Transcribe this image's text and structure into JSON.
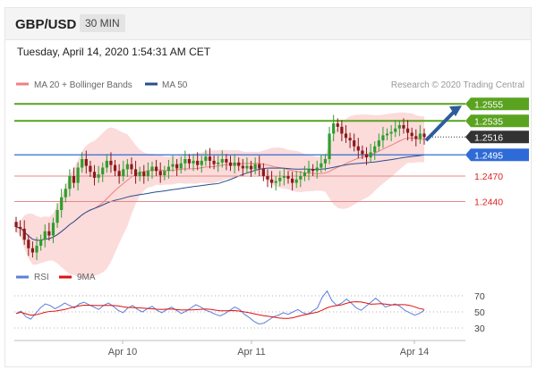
{
  "header": {
    "pair": "GBP/USD",
    "timeframe": "30 MIN"
  },
  "datetime": "Tuesday, April 14, 2020 1:54:31 AM CET",
  "colors": {
    "up_candle": "#2e9e2e",
    "down_candle": "#8b1a1a",
    "band_fill": "#fbd5d5",
    "ma20": "#f08080",
    "ma50": "#274f8c",
    "resistance": "#5aa320",
    "support_red": "#e58a8a",
    "support_blue": "#2f6bd6",
    "current": "#333333",
    "arrow": "#2c5d9a",
    "rsi": "#5b7fd8",
    "ma9": "#e01010"
  },
  "legend": [
    {
      "name": "MA 20 + Bollinger Bands",
      "color": "#f08080"
    },
    {
      "name": "MA 50",
      "color": "#274f8c"
    }
  ],
  "credit": "Research © 2020 Trading Central",
  "levels": [
    {
      "value": 1.2555,
      "label": "1.2555",
      "kind": "resistance"
    },
    {
      "value": 1.2535,
      "label": "1.2535",
      "kind": "resistance"
    },
    {
      "value": 1.2516,
      "label": "1.2516",
      "kind": "current"
    },
    {
      "value": 1.2495,
      "label": "1.2495",
      "kind": "support-blue"
    },
    {
      "value": 1.247,
      "label": "1.2470",
      "kind": "support-red"
    },
    {
      "value": 1.244,
      "label": "1.2440",
      "kind": "support-red"
    }
  ],
  "rsi": {
    "legend": [
      {
        "name": "RSI",
        "color": "#5b7fd8"
      },
      {
        "name": "9MA",
        "color": "#e01010"
      }
    ],
    "ticks": [
      "70",
      "50",
      "30"
    ],
    "values": [
      48,
      51,
      44,
      41,
      48,
      55,
      60,
      58,
      54,
      57,
      61,
      58,
      55,
      60,
      62,
      59,
      56,
      53,
      58,
      61,
      57,
      52,
      49,
      55,
      58,
      53,
      50,
      54,
      57,
      52,
      49,
      53,
      56,
      52,
      48,
      51,
      55,
      59,
      56,
      52,
      50,
      47,
      45,
      48,
      52,
      56,
      53,
      47,
      43,
      38,
      35,
      36,
      40,
      44,
      46,
      49,
      47,
      50,
      53,
      49,
      47,
      51,
      55,
      68,
      76,
      64,
      58,
      61,
      66,
      61,
      55,
      52,
      57,
      62,
      67,
      62,
      56,
      58,
      60,
      57,
      52,
      49,
      46,
      48,
      52
    ]
  },
  "chart_data": {
    "type": "candlestick",
    "instrument": "GBP/USD",
    "timeframe": "30 MIN",
    "x_tick_labels": [
      "Apr 10",
      "Apr 11",
      "Apr 14"
    ],
    "close": [
      1.241,
      1.2408,
      1.2395,
      1.2385,
      1.238,
      1.2388,
      1.2395,
      1.2405,
      1.24,
      1.2415,
      1.243,
      1.2445,
      1.2455,
      1.247,
      1.2462,
      1.248,
      1.249,
      1.2482,
      1.2475,
      1.2468,
      1.2472,
      1.248,
      1.2488,
      1.2483,
      1.2476,
      1.247,
      1.2478,
      1.2484,
      1.2478,
      1.247,
      1.2475,
      1.247,
      1.2476,
      1.2481,
      1.2476,
      1.2471,
      1.2476,
      1.2481,
      1.2484,
      1.2479,
      1.2485,
      1.249,
      1.2485,
      1.2488,
      1.2483,
      1.2488,
      1.2493,
      1.2488,
      1.2484,
      1.2486,
      1.249,
      1.2486,
      1.2482,
      1.2486,
      1.2482,
      1.2479,
      1.2482,
      1.2478,
      1.2484,
      1.2479,
      1.247,
      1.2466,
      1.2462,
      1.2464,
      1.2468,
      1.247,
      1.2467,
      1.2462,
      1.2466,
      1.247,
      1.2474,
      1.2478,
      1.2476,
      1.248,
      1.2485,
      1.249,
      1.252,
      1.2532,
      1.2528,
      1.252,
      1.2515,
      1.2512,
      1.2505,
      1.25,
      1.2496,
      1.2492,
      1.2498,
      1.2505,
      1.2512,
      1.2518,
      1.252,
      1.2522,
      1.2526,
      1.253,
      1.2526,
      1.2521,
      1.2517,
      1.2514,
      1.252,
      1.2516
    ],
    "ylim": [
      1.237,
      1.257
    ],
    "moving_averages": [
      "MA 20 + Bollinger Bands",
      "MA 50"
    ],
    "projection": {
      "from": 1.2512,
      "to": 1.2555
    }
  }
}
